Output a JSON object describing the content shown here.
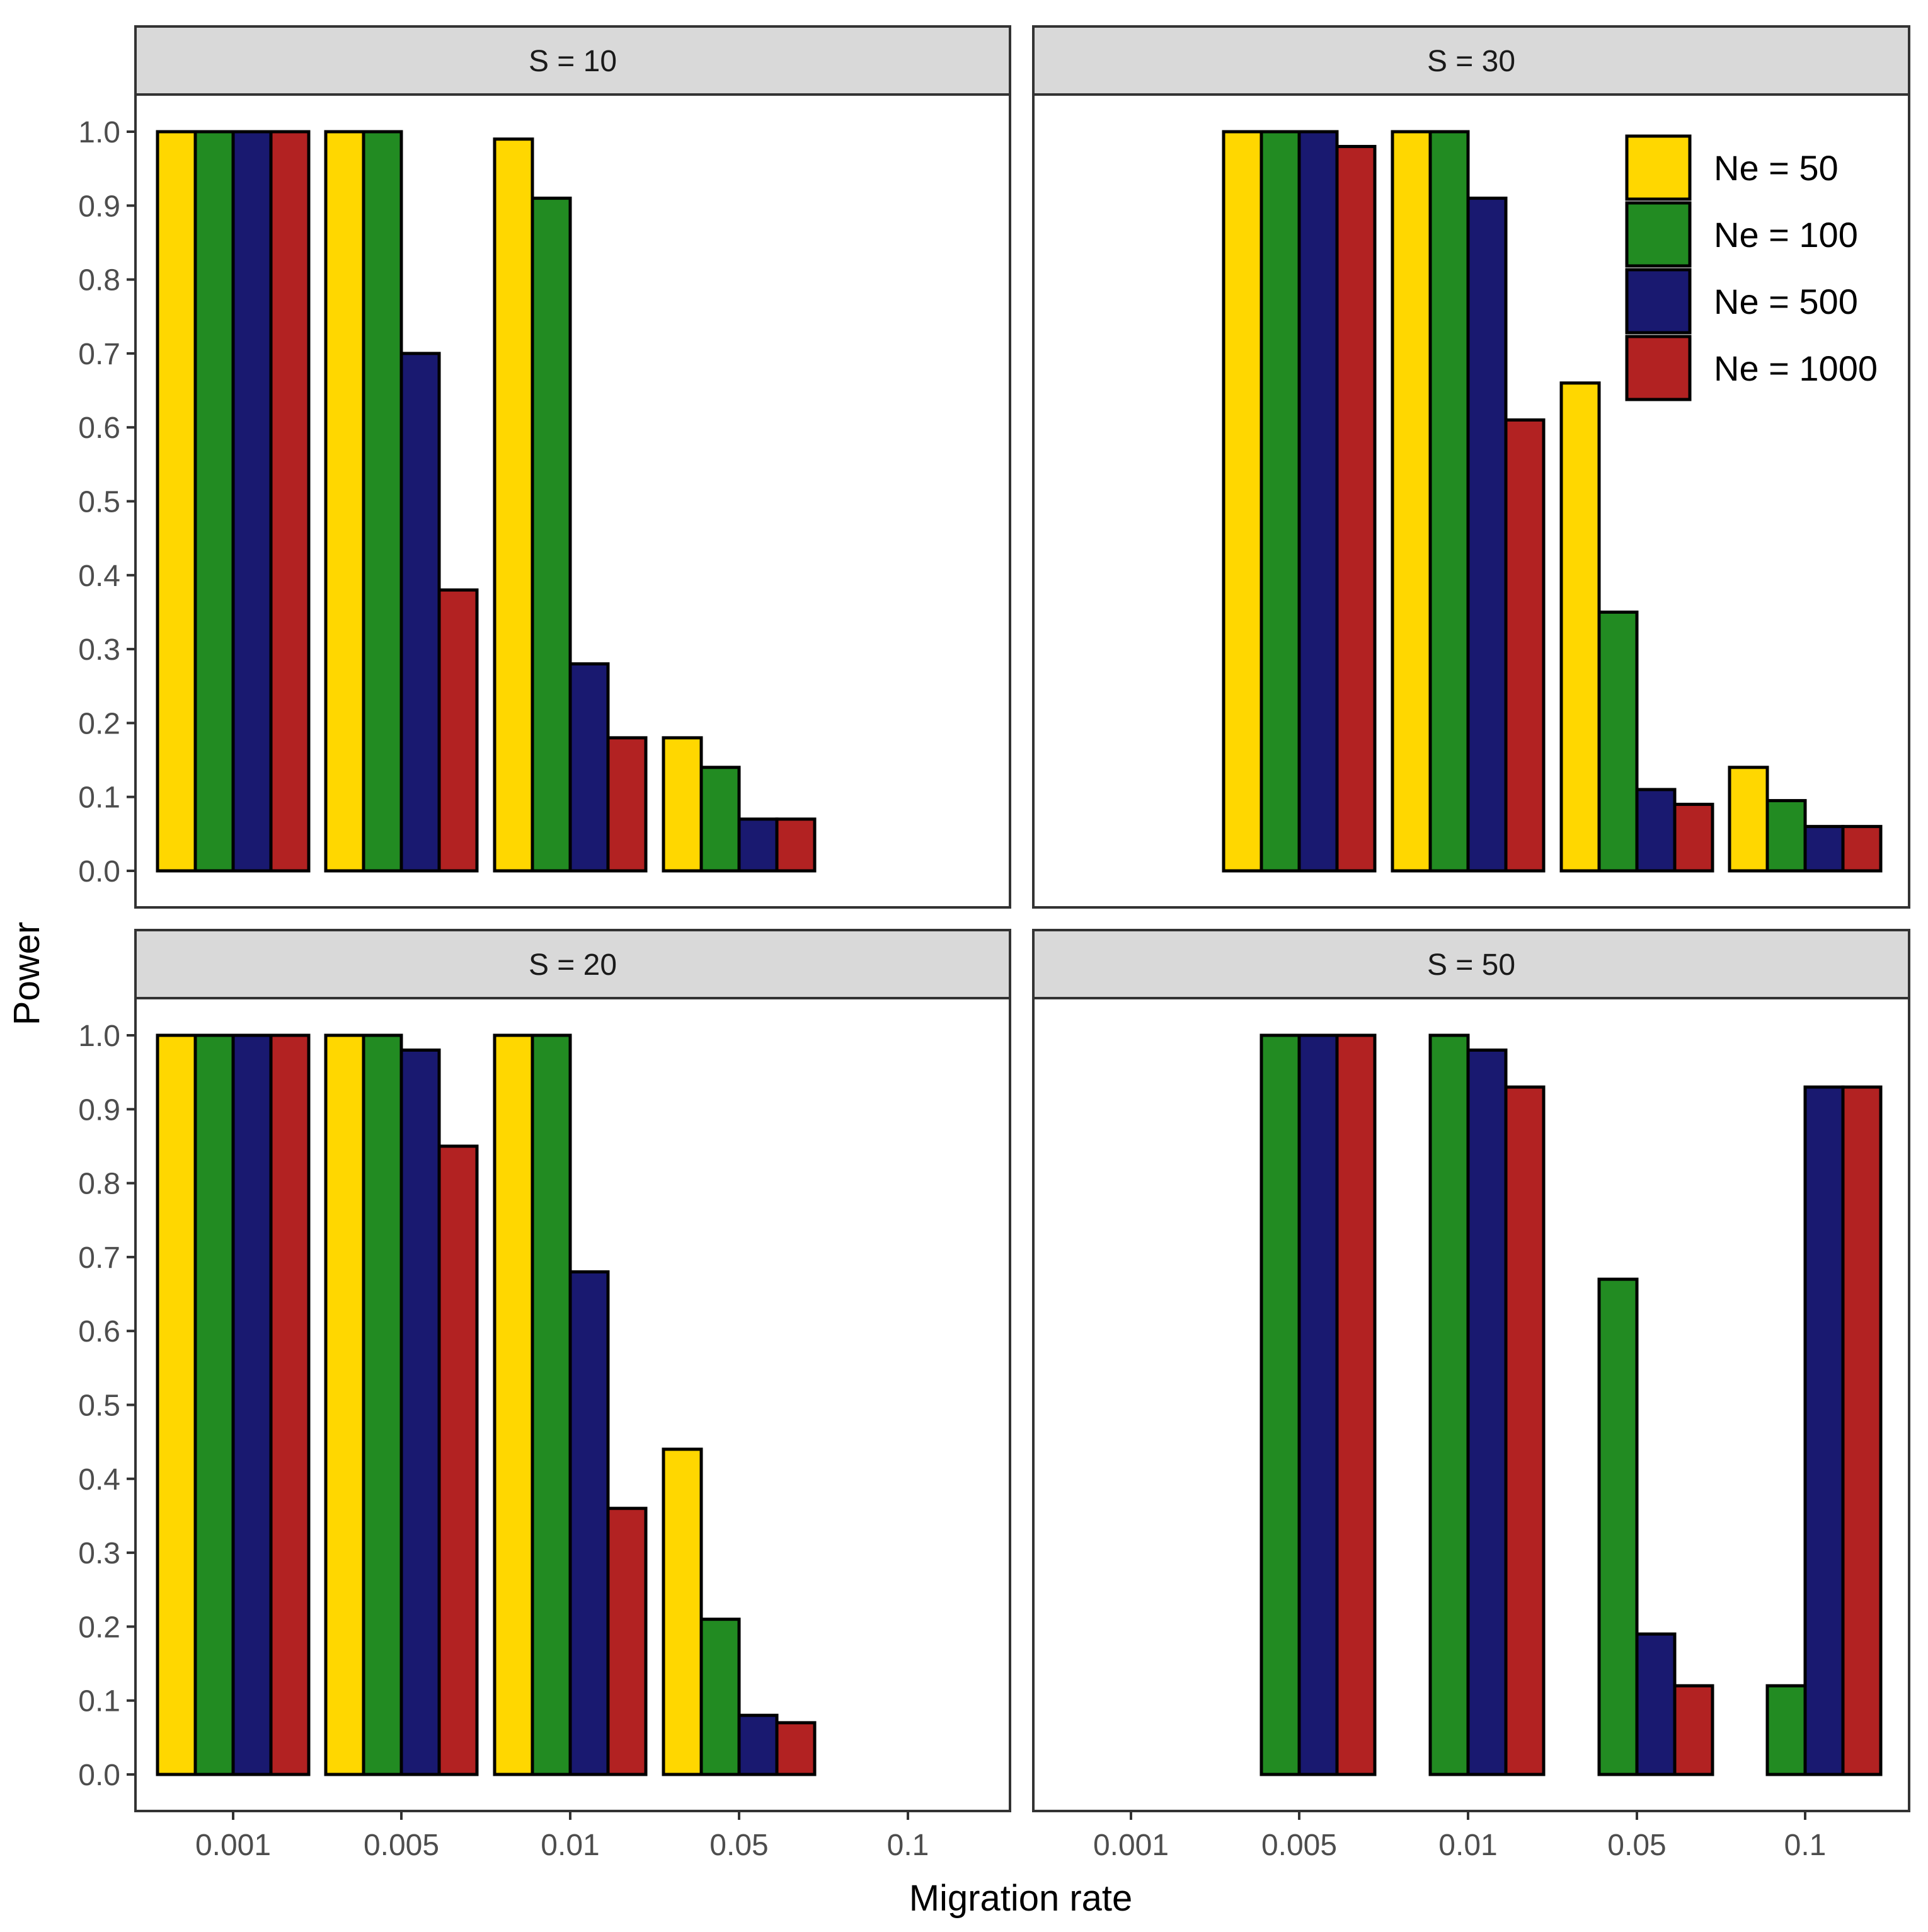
{
  "chart_data": {
    "type": "bar",
    "xlabel": "Migration rate",
    "ylabel": "Power",
    "ylim": [
      0,
      1.0
    ],
    "yticks": [
      "0.0",
      "0.1",
      "0.2",
      "0.3",
      "0.4",
      "0.5",
      "0.6",
      "0.7",
      "0.8",
      "0.9",
      "1.0"
    ],
    "categories": [
      "0.001",
      "0.005",
      "0.01",
      "0.05",
      "0.1"
    ],
    "legend": {
      "placement": "inside top-right of S = 30 panel",
      "entries": [
        {
          "name": "Ne = 50",
          "color": "#FFD700"
        },
        {
          "name": "Ne = 100",
          "color": "#228B22"
        },
        {
          "name": "Ne = 500",
          "color": "#191970"
        },
        {
          "name": "Ne = 1000",
          "color": "#B22222"
        }
      ]
    },
    "panels": [
      {
        "title": "S = 10",
        "series": [
          {
            "name": "Ne = 50",
            "values": [
              1.0,
              1.0,
              0.99,
              0.18,
              null
            ]
          },
          {
            "name": "Ne = 100",
            "values": [
              1.0,
              1.0,
              0.91,
              0.14,
              null
            ]
          },
          {
            "name": "Ne = 500",
            "values": [
              1.0,
              0.7,
              0.28,
              0.07,
              null
            ]
          },
          {
            "name": "Ne = 1000",
            "values": [
              1.0,
              0.38,
              0.18,
              0.07,
              null
            ]
          }
        ]
      },
      {
        "title": "S = 30",
        "series": [
          {
            "name": "Ne = 50",
            "values": [
              null,
              1.0,
              1.0,
              0.66,
              0.14
            ]
          },
          {
            "name": "Ne = 100",
            "values": [
              null,
              1.0,
              1.0,
              0.35,
              0.095
            ]
          },
          {
            "name": "Ne = 500",
            "values": [
              null,
              1.0,
              0.91,
              0.11,
              0.06
            ]
          },
          {
            "name": "Ne = 1000",
            "values": [
              null,
              0.98,
              0.61,
              0.09,
              0.06
            ]
          }
        ]
      },
      {
        "title": "S = 20",
        "series": [
          {
            "name": "Ne = 50",
            "values": [
              1.0,
              1.0,
              1.0,
              0.44,
              null
            ]
          },
          {
            "name": "Ne = 100",
            "values": [
              1.0,
              1.0,
              1.0,
              0.21,
              null
            ]
          },
          {
            "name": "Ne = 500",
            "values": [
              1.0,
              0.98,
              0.68,
              0.08,
              null
            ]
          },
          {
            "name": "Ne = 1000",
            "values": [
              1.0,
              0.85,
              0.36,
              0.07,
              null
            ]
          }
        ]
      },
      {
        "title": "S = 50",
        "series": [
          {
            "name": "Ne = 100",
            "values": [
              null,
              1.0,
              1.0,
              0.67,
              0.12
            ]
          },
          {
            "name": "Ne = 500",
            "values": [
              null,
              1.0,
              0.98,
              0.19,
              0.93
            ]
          },
          {
            "name": "Ne = 1000",
            "values": [
              null,
              1.0,
              0.93,
              0.12,
              0.93
            ]
          }
        ]
      }
    ]
  }
}
